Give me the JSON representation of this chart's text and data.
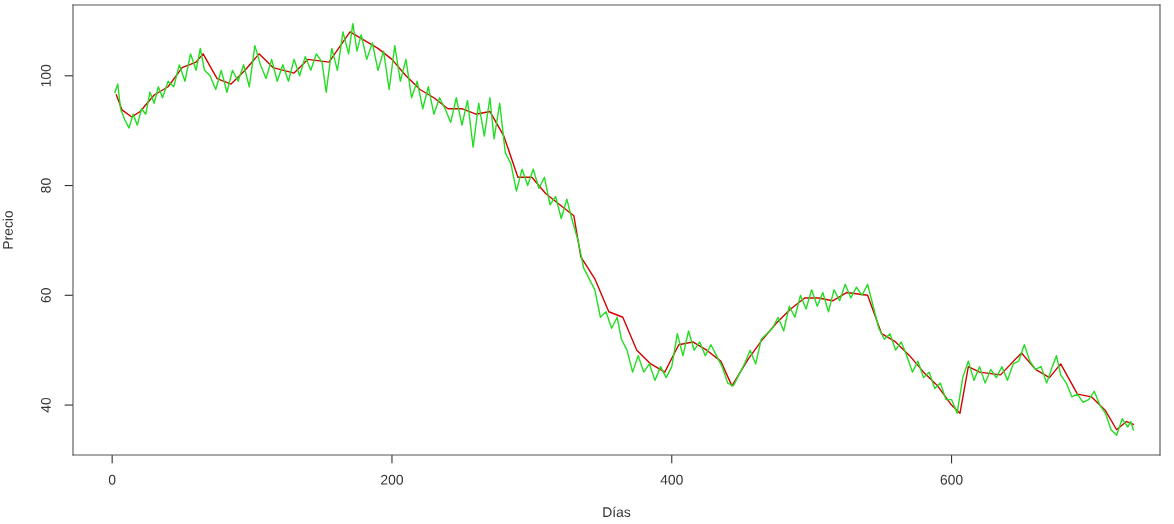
{
  "chart_data": {
    "type": "line",
    "xlabel": "Días",
    "ylabel": "Precio",
    "xlim": [
      -28,
      749
    ],
    "ylim": [
      30.9,
      112.9
    ],
    "xticks": [
      0,
      200,
      400,
      600
    ],
    "yticks": [
      40,
      60,
      80,
      100
    ],
    "grid": false,
    "marker": "none",
    "line_style": "solid",
    "series": [
      {
        "color": "#d40000",
        "x": [
          3,
          7,
          14,
          20,
          30,
          40,
          50,
          60,
          65,
          75,
          85,
          95,
          105,
          115,
          130,
          140,
          155,
          170,
          180,
          190,
          200,
          210,
          220,
          230,
          240,
          250,
          260,
          270,
          280,
          290,
          300,
          310,
          320,
          330,
          335,
          345,
          355,
          365,
          375,
          385,
          395,
          405,
          415,
          425,
          435,
          443,
          455,
          465,
          475,
          485,
          495,
          505,
          515,
          525,
          540,
          550,
          560,
          570,
          580,
          590,
          600,
          606,
          612,
          620,
          635,
          650,
          660,
          670,
          678,
          690,
          700,
          710,
          718,
          725,
          730
        ],
        "values": [
          96.5,
          93.8,
          92.5,
          93.5,
          96.5,
          98,
          101.5,
          102.5,
          104,
          99.5,
          98.5,
          101,
          104,
          101.5,
          100.5,
          103,
          102.5,
          108,
          106.5,
          105,
          103,
          100,
          97.5,
          96,
          94,
          94,
          93,
          93.5,
          89,
          81.5,
          81.5,
          78.5,
          76.5,
          74.5,
          67,
          63,
          57,
          56,
          50,
          47.5,
          46,
          51,
          51.5,
          50,
          48,
          43.5,
          48.5,
          52,
          55,
          57.5,
          59.5,
          59.5,
          59,
          60.5,
          60,
          53,
          51.5,
          49,
          46,
          43.5,
          40,
          38.5,
          47,
          46,
          45.5,
          49.5,
          46.5,
          45,
          47.5,
          42,
          41.5,
          39,
          35.5,
          37,
          36.5
        ]
      },
      {
        "color": "#22dd22",
        "x": [
          2,
          4,
          6,
          9,
          12,
          15,
          18,
          21,
          24,
          27,
          30,
          33,
          36,
          40,
          44,
          48,
          52,
          56,
          60,
          63,
          66,
          70,
          74,
          78,
          82,
          86,
          90,
          94,
          98,
          102,
          106,
          110,
          114,
          118,
          122,
          126,
          130,
          134,
          138,
          142,
          146,
          150,
          153,
          157,
          161,
          165,
          169,
          172,
          175,
          178,
          182,
          186,
          190,
          194,
          198,
          202,
          206,
          210,
          214,
          218,
          222,
          226,
          230,
          234,
          238,
          242,
          246,
          250,
          254,
          258,
          262,
          266,
          270,
          273,
          277,
          281,
          285,
          289,
          293,
          297,
          301,
          305,
          309,
          313,
          317,
          321,
          325,
          329,
          333,
          337,
          341,
          345,
          349,
          353,
          357,
          361,
          364,
          368,
          372,
          376,
          380,
          384,
          388,
          392,
          396,
          400,
          404,
          408,
          412,
          416,
          420,
          424,
          428,
          432,
          436,
          440,
          444,
          448,
          452,
          456,
          460,
          464,
          468,
          472,
          476,
          480,
          484,
          488,
          492,
          496,
          500,
          504,
          508,
          512,
          516,
          520,
          524,
          528,
          532,
          536,
          540,
          544,
          548,
          552,
          556,
          560,
          564,
          568,
          572,
          576,
          580,
          584,
          588,
          592,
          596,
          600,
          604,
          608,
          612,
          616,
          620,
          624,
          628,
          632,
          636,
          640,
          644,
          648,
          652,
          656,
          660,
          664,
          668,
          672,
          675,
          678,
          682,
          686,
          690,
          694,
          698,
          702,
          706,
          710,
          714,
          718,
          722,
          726,
          728,
          730
        ],
        "values": [
          97,
          98.5,
          94,
          92,
          90.5,
          93,
          91,
          94,
          93,
          97,
          95,
          98,
          96,
          99,
          98,
          102,
          99,
          104,
          101,
          105,
          101,
          100,
          97.5,
          101,
          97,
          101,
          99,
          102,
          98,
          105.5,
          102,
          99.5,
          103,
          99,
          102,
          99,
          103,
          100,
          103.5,
          101,
          104,
          102.5,
          97,
          105,
          101,
          108,
          104,
          109.5,
          104.5,
          107.5,
          103,
          106,
          101,
          104.5,
          97.5,
          105.5,
          99,
          103,
          96,
          99,
          94,
          98,
          93,
          96,
          94,
          91.5,
          96,
          91,
          95.5,
          87,
          95,
          89,
          96,
          88.5,
          95,
          86,
          84,
          79,
          83,
          80,
          83,
          79.5,
          81.5,
          76.5,
          78,
          74,
          77.5,
          73.5,
          70,
          65,
          63,
          61,
          56,
          57,
          54,
          56,
          52,
          50,
          46,
          49,
          46,
          47.5,
          44.5,
          47,
          45,
          47,
          53,
          49,
          53.5,
          50,
          51.5,
          49,
          51,
          49,
          47,
          44,
          43.5,
          45.5,
          47.5,
          50,
          47.5,
          52,
          53,
          54,
          56,
          53.5,
          58,
          56,
          60,
          57.5,
          61,
          58,
          60.5,
          57,
          61,
          59,
          62,
          59.5,
          61.5,
          60,
          62,
          58,
          54,
          52,
          53,
          50,
          51.5,
          49,
          46,
          48,
          45,
          46,
          43,
          44,
          41,
          41,
          38.5,
          45,
          48,
          44.5,
          47,
          44,
          46.5,
          45,
          47,
          44.5,
          47.5,
          48,
          51,
          48,
          46.5,
          47,
          44,
          47,
          49,
          45.5,
          44,
          41.5,
          42,
          40.5,
          41,
          42.5,
          40,
          38.5,
          35.5,
          34.5,
          37.5,
          36,
          37,
          35.5
        ]
      }
    ]
  }
}
